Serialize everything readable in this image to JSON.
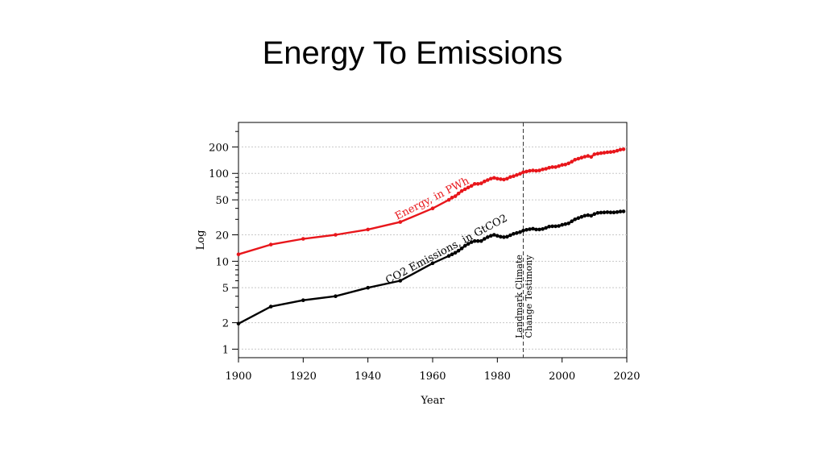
{
  "slide": {
    "title": "Energy To Emissions"
  },
  "chart_data": {
    "type": "line",
    "title": "",
    "xlabel": "Year",
    "ylabel": "Log",
    "y_scale": "log",
    "xlim": [
      1900,
      2020
    ],
    "ylim": [
      0.8,
      380
    ],
    "grid": "horizontal-dotted",
    "x_ticks": [
      1900,
      1920,
      1940,
      1960,
      1980,
      2000,
      2020
    ],
    "y_ticks": [
      1,
      2,
      5,
      10,
      20,
      50,
      100,
      200
    ],
    "series": [
      {
        "name": "Energy, in PWh",
        "color": "#e8161b",
        "x": [
          1900,
          1910,
          1920,
          1930,
          1940,
          1950,
          1960,
          1965,
          1966,
          1967,
          1968,
          1969,
          1970,
          1971,
          1972,
          1973,
          1974,
          1975,
          1976,
          1977,
          1978,
          1979,
          1980,
          1981,
          1982,
          1983,
          1984,
          1985,
          1986,
          1987,
          1988,
          1989,
          1990,
          1991,
          1992,
          1993,
          1994,
          1995,
          1996,
          1997,
          1998,
          1999,
          2000,
          2001,
          2002,
          2003,
          2004,
          2005,
          2006,
          2007,
          2008,
          2009,
          2010,
          2011,
          2012,
          2013,
          2014,
          2015,
          2016,
          2017,
          2018,
          2019
        ],
        "y": [
          12,
          15.5,
          18,
          20,
          23,
          28,
          40,
          50,
          53,
          55,
          59,
          63,
          66,
          69,
          72,
          76,
          76,
          77,
          81,
          84,
          87,
          89,
          87,
          86,
          85,
          87,
          91,
          93,
          96,
          99,
          103,
          105,
          107,
          108,
          107,
          108,
          111,
          113,
          116,
          118,
          118,
          121,
          125,
          126,
          130,
          136,
          143,
          147,
          151,
          155,
          158,
          154,
          165,
          168,
          170,
          172,
          174,
          175,
          177,
          181,
          186,
          188
        ]
      },
      {
        "name": "CO2 Emissions, in GtCO2",
        "color": "#000000",
        "x": [
          1900,
          1910,
          1920,
          1930,
          1940,
          1950,
          1960,
          1965,
          1966,
          1967,
          1968,
          1969,
          1970,
          1971,
          1972,
          1973,
          1974,
          1975,
          1976,
          1977,
          1978,
          1979,
          1980,
          1981,
          1982,
          1983,
          1984,
          1985,
          1986,
          1987,
          1988,
          1989,
          1990,
          1991,
          1992,
          1993,
          1994,
          1995,
          1996,
          1997,
          1998,
          1999,
          2000,
          2001,
          2002,
          2003,
          2004,
          2005,
          2006,
          2007,
          2008,
          2009,
          2010,
          2011,
          2012,
          2013,
          2014,
          2015,
          2016,
          2017,
          2018,
          2019
        ],
        "y": [
          1.95,
          3.05,
          3.6,
          4.0,
          5.0,
          6.0,
          9.5,
          11.5,
          12.0,
          12.5,
          13.2,
          14.0,
          15.0,
          15.8,
          16.5,
          17.0,
          17.0,
          17.0,
          18.0,
          18.8,
          19.5,
          20.0,
          19.5,
          19.0,
          18.8,
          19.0,
          19.8,
          20.5,
          21.0,
          21.5,
          22.3,
          22.8,
          23.2,
          23.5,
          23.0,
          23.0,
          23.3,
          24.0,
          24.8,
          25.0,
          25.0,
          25.2,
          26.0,
          26.5,
          27.0,
          28.5,
          30.0,
          31.0,
          32.0,
          33.0,
          33.5,
          33.0,
          34.5,
          35.5,
          35.8,
          36.0,
          36.2,
          36.0,
          36.0,
          36.3,
          36.8,
          37.0
        ]
      }
    ],
    "annotations": {
      "energy_label": "Energy, in PWh",
      "co2_label": "CO2 Emissions, in GtCO2",
      "vline_year": 1988,
      "vline_label_1": "Landmark Climate",
      "vline_label_2": "Change Testimony"
    }
  }
}
